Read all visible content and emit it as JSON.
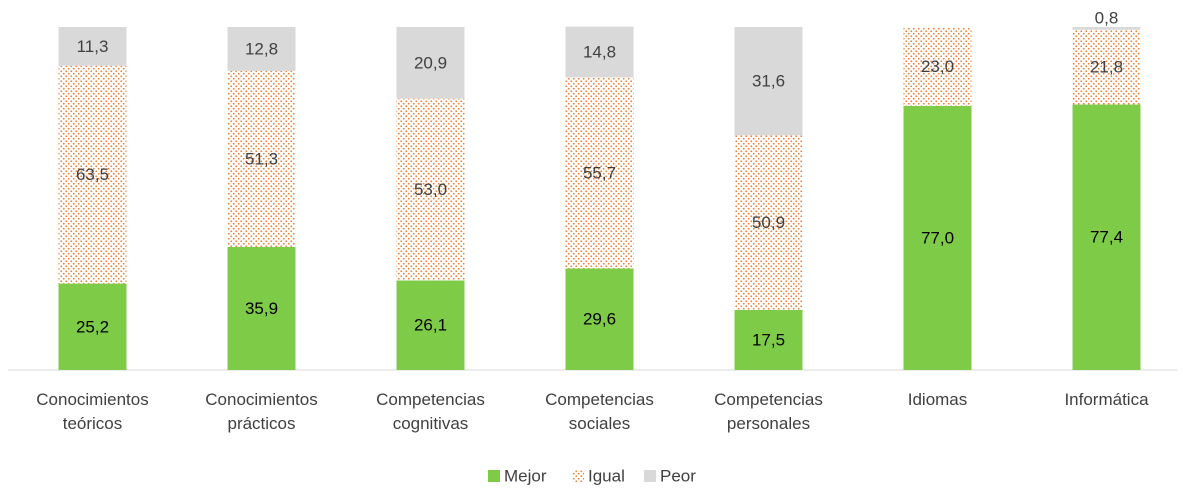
{
  "chart_data": {
    "type": "stacked-bar",
    "categories": [
      "Conocimientos teóricos",
      "Conocimientos prácticos",
      "Competencias cognitivas",
      "Competencias sociales",
      "Competencias personales",
      "Idiomas",
      "Informática"
    ],
    "ylim": [
      0,
      100
    ],
    "series": [
      {
        "name": "Mejor",
        "color": "#7ecb48",
        "values": [
          25.2,
          35.9,
          26.1,
          29.6,
          17.5,
          77.0,
          77.4
        ],
        "value_labels": [
          "25,2",
          "35,9",
          "26,1",
          "29,6",
          "17,5",
          "77,0",
          "77,4"
        ]
      },
      {
        "name": "Igual",
        "color": "#ed7d31",
        "values": [
          63.5,
          51.3,
          53.0,
          55.7,
          50.9,
          23.0,
          21.8
        ],
        "value_labels": [
          "63,5",
          "51,3",
          "53,0",
          "55,7",
          "50,9",
          "23,0",
          "21,8"
        ]
      },
      {
        "name": "Peor",
        "color": "#d9d9d9",
        "values": [
          11.3,
          12.8,
          20.9,
          14.8,
          31.6,
          null,
          0.8
        ],
        "value_labels": [
          "11,3",
          "12,8",
          "20,9",
          "14,8",
          "31,6",
          null,
          "0,8"
        ]
      }
    ],
    "legend": "bottom"
  }
}
